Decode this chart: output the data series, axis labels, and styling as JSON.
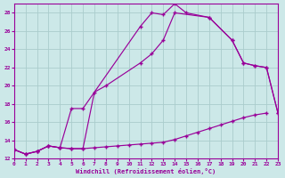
{
  "background_color": "#cce8e8",
  "grid_color": "#aacccc",
  "line_color": "#990099",
  "xlabel": "Windchill (Refroidissement éolien,°C)",
  "xlim": [
    0,
    23
  ],
  "ylim": [
    12,
    29
  ],
  "yticks": [
    12,
    14,
    16,
    18,
    20,
    22,
    24,
    26,
    28
  ],
  "xticks": [
    0,
    1,
    2,
    3,
    4,
    5,
    6,
    7,
    8,
    9,
    10,
    11,
    12,
    13,
    14,
    15,
    16,
    17,
    18,
    19,
    20,
    21,
    22,
    23
  ],
  "series": [
    {
      "x": [
        0,
        1,
        2,
        3,
        4,
        5,
        6,
        11,
        12,
        13,
        14,
        15,
        17,
        19,
        20,
        21,
        22,
        23
      ],
      "y": [
        13.0,
        12.5,
        12.8,
        13.4,
        13.2,
        17.5,
        17.5,
        26.5,
        28.0,
        27.8,
        29.0,
        28.0,
        27.5,
        25.0,
        22.5,
        22.2,
        22.0,
        17.0
      ]
    },
    {
      "x": [
        0,
        1,
        2,
        3,
        4,
        5,
        6,
        7,
        8,
        11,
        12,
        13,
        14,
        17,
        19,
        20,
        21,
        22,
        23
      ],
      "y": [
        13.0,
        12.5,
        12.8,
        13.4,
        13.2,
        13.1,
        13.1,
        19.3,
        20.0,
        22.5,
        23.5,
        25.0,
        28.0,
        27.5,
        25.0,
        22.5,
        22.2,
        22.0,
        17.0
      ]
    },
    {
      "x": [
        0,
        1,
        2,
        3,
        4,
        5,
        6,
        7,
        8,
        9,
        10,
        11,
        12,
        13,
        14,
        15,
        16,
        17,
        18,
        19,
        20,
        21,
        22
      ],
      "y": [
        13.0,
        12.5,
        12.8,
        13.4,
        13.2,
        13.1,
        13.1,
        13.2,
        13.3,
        13.4,
        13.5,
        13.6,
        13.7,
        13.8,
        14.1,
        14.5,
        14.9,
        15.3,
        15.7,
        16.1,
        16.5,
        16.8,
        17.0
      ]
    }
  ]
}
